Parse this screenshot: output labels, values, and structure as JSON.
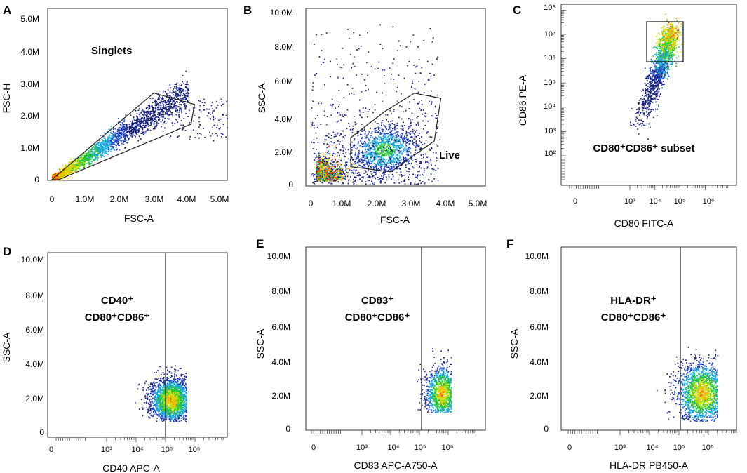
{
  "figure": {
    "panels": [
      {
        "letter": "A",
        "xlabel": "FSC-A",
        "ylabel": "FSC-H",
        "gate_label": "Singlets"
      },
      {
        "letter": "B",
        "xlabel": "FSC-A",
        "ylabel": "SSC-A",
        "gate_label": "Live"
      },
      {
        "letter": "C",
        "xlabel": "CD80 FITC-A",
        "ylabel": "CD86 PE-A",
        "gate_label": "CD80⁺CD86⁺ subset"
      },
      {
        "letter": "D",
        "xlabel": "CD40 APC-A",
        "ylabel": "SSC-A",
        "gate_label_line1": "CD40⁺",
        "gate_label_line2": "CD80⁺CD86⁺"
      },
      {
        "letter": "E",
        "xlabel": "CD83 APC-A750-A",
        "ylabel": "SSC-A",
        "gate_label_line1": "CD83⁺",
        "gate_label_line2": "CD80⁺CD86⁺"
      },
      {
        "letter": "F",
        "xlabel": "HLA-DR PB450-A",
        "ylabel": "SSC-A",
        "gate_label_line1": "HLA-DR⁺",
        "gate_label_line2": "CD80⁺CD86⁺"
      }
    ]
  },
  "chart_data": [
    {
      "type": "scatter",
      "panel": "A",
      "title": "",
      "xlabel": "FSC-A",
      "ylabel": "FSC-H",
      "xscale": "linear",
      "yscale": "linear",
      "xlim": [
        0,
        5300000
      ],
      "ylim": [
        0,
        5300000
      ],
      "xticks": [
        0,
        1000000,
        2000000,
        3000000,
        4000000,
        5000000
      ],
      "xtick_labels": [
        "0",
        "1.0M",
        "2.0M",
        "3.0M",
        "4.0M",
        "5.0M"
      ],
      "yticks": [
        0,
        1000000,
        2000000,
        3000000,
        4000000,
        5000000
      ],
      "ytick_labels": [
        "0",
        "1.0M",
        "2.0M",
        "3.0M",
        "4.0M",
        "5.0M"
      ],
      "gate": {
        "label": "Singlets",
        "shape": "polygon",
        "vertices": [
          [
            0,
            0
          ],
          [
            3000000,
            2650000
          ],
          [
            4200000,
            2300000
          ],
          [
            4100000,
            1700000
          ],
          [
            200000,
            0
          ]
        ]
      },
      "population": {
        "shape": "diagonal",
        "x_range": [
          0,
          4000000
        ],
        "slope": 0.68,
        "density_peak": [
          500000,
          300000
        ]
      }
    },
    {
      "type": "scatter",
      "panel": "B",
      "title": "",
      "xlabel": "FSC-A",
      "ylabel": "SSC-A",
      "xscale": "linear",
      "yscale": "linear",
      "xlim": [
        0,
        5300000
      ],
      "ylim": [
        0,
        10500000
      ],
      "xticks": [
        0,
        1000000,
        2000000,
        3000000,
        4000000,
        5000000
      ],
      "xtick_labels": [
        "0",
        "1.0M",
        "2.0M",
        "3.0M",
        "4.0M",
        "5.0M"
      ],
      "yticks": [
        0,
        2000000,
        4000000,
        6000000,
        8000000,
        10000000
      ],
      "ytick_labels": [
        "0",
        "2.0M",
        "4.0M",
        "6.0M",
        "8.0M",
        "10.0M"
      ],
      "gate": {
        "label": "Live",
        "shape": "polygon",
        "vertices": [
          [
            1200000,
            1000000
          ],
          [
            1200000,
            2700000
          ],
          [
            2200000,
            4200000
          ],
          [
            3100000,
            5300000
          ],
          [
            3900000,
            5000000
          ],
          [
            3700000,
            2500000
          ],
          [
            2400000,
            700000
          ]
        ]
      },
      "population": {
        "centers": [
          [
            200000,
            400000
          ],
          [
            2200000,
            2000000
          ]
        ],
        "density_peak": [
          150000,
          300000
        ]
      }
    },
    {
      "type": "scatter",
      "panel": "C",
      "title": "",
      "xlabel": "CD80 FITC-A",
      "ylabel": "CD86 PE-A",
      "xscale": "log",
      "yscale": "log",
      "xticks": [
        0,
        1000,
        10000,
        100000,
        1000000
      ],
      "xtick_labels": [
        "0",
        "10³",
        "10⁴",
        "10⁵",
        "10⁶"
      ],
      "yticks": [
        100,
        1000,
        10000,
        100000,
        1000000,
        10000000,
        100000000
      ],
      "ytick_labels": [
        "10²",
        "10³",
        "10⁴",
        "10⁵",
        "10⁶",
        "10⁷",
        "10⁸"
      ],
      "gate": {
        "label": "CD80⁺CD86⁺ subset",
        "shape": "rectangle",
        "x_range": [
          6000,
          150000
        ],
        "y_range": [
          700000,
          30000000
        ]
      },
      "population": {
        "shape": "diagonal",
        "from": [
          2000,
          1000
        ],
        "to": [
          50000,
          20000000
        ],
        "density_peak": [
          20000,
          5000000
        ]
      }
    },
    {
      "type": "scatter",
      "panel": "D",
      "title": "",
      "xlabel": "CD40 APC-A",
      "ylabel": "SSC-A",
      "xscale": "log",
      "yscale": "linear",
      "ylim": [
        0,
        10500000
      ],
      "xticks": [
        0,
        1000,
        10000,
        100000,
        1000000
      ],
      "xtick_labels": [
        "0",
        "10³",
        "10⁴",
        "10⁵",
        "10⁶"
      ],
      "yticks": [
        0,
        2000000,
        4000000,
        6000000,
        8000000,
        10000000
      ],
      "ytick_labels": [
        "0",
        "2.0M",
        "4.0M",
        "6.0M",
        "8.0M",
        "10.0M"
      ],
      "gate": {
        "label": "CD40⁺ CD80⁺CD86⁺",
        "shape": "vertical_line",
        "x": 100000
      },
      "population": {
        "center": [
          150000,
          2000000
        ],
        "x_log_range": [
          3.9,
          5.7
        ],
        "y_range": [
          800000,
          4000000
        ]
      }
    },
    {
      "type": "scatter",
      "panel": "E",
      "title": "",
      "xlabel": "CD83 APC-A750-A",
      "ylabel": "SSC-A",
      "xscale": "log",
      "yscale": "linear",
      "ylim": [
        0,
        10500000
      ],
      "xticks": [
        0,
        1000,
        10000,
        100000,
        1000000
      ],
      "xtick_labels": [
        "0",
        "10³",
        "10⁴",
        "10⁵",
        "10⁶"
      ],
      "yticks": [
        0,
        2000000,
        4000000,
        6000000,
        8000000,
        10000000
      ],
      "ytick_labels": [
        "0",
        "2.0M",
        "4.0M",
        "6.0M",
        "8.0M",
        "10.0M"
      ],
      "gate": {
        "label": "CD83⁺ CD80⁺CD86⁺",
        "shape": "vertical_line",
        "x": 100000
      },
      "population": {
        "center": [
          600000,
          2100000
        ],
        "x_log_range": [
          4.6,
          6.1
        ],
        "y_range": [
          1000000,
          5000000
        ]
      }
    },
    {
      "type": "scatter",
      "panel": "F",
      "title": "",
      "xlabel": "HLA-DR PB450-A",
      "ylabel": "SSC-A",
      "xscale": "log",
      "yscale": "linear",
      "ylim": [
        0,
        10500000
      ],
      "xticks": [
        0,
        1000,
        10000,
        100000,
        1000000
      ],
      "xtick_labels": [
        "0",
        "10³",
        "10⁴",
        "10⁵",
        "10⁶"
      ],
      "yticks": [
        0,
        2000000,
        4000000,
        6000000,
        8000000,
        10000000
      ],
      "ytick_labels": [
        "0",
        "2.0M",
        "4.0M",
        "6.0M",
        "8.0M",
        "10.0M"
      ],
      "gate": {
        "label": "HLA-DR⁺ CD80⁺CD86⁺",
        "shape": "vertical_line",
        "x": 100000
      },
      "population": {
        "center": [
          600000,
          2100000
        ],
        "x_log_range": [
          4.1,
          6.3
        ],
        "y_range": [
          500000,
          5000000
        ]
      }
    }
  ]
}
